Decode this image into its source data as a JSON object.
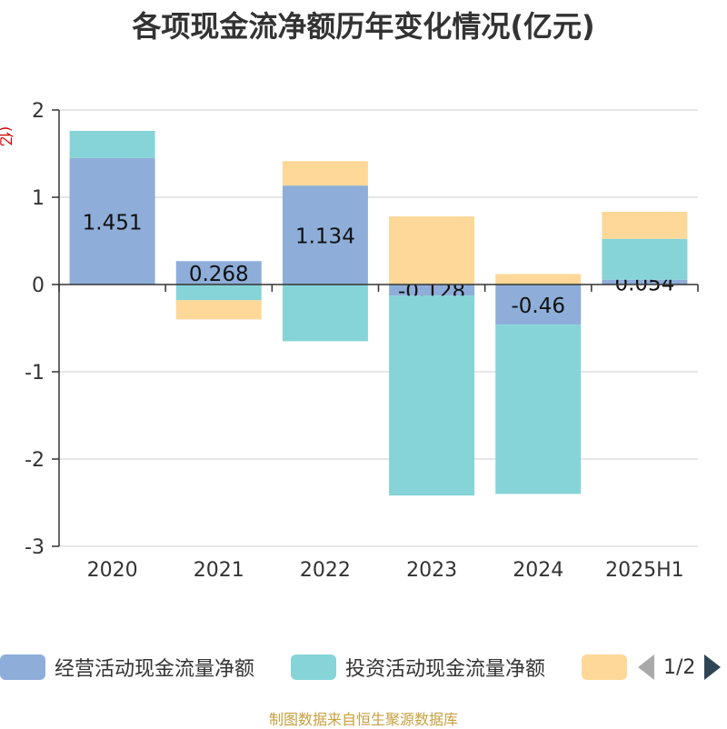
{
  "title": "各项现金流净额历年变化情况(亿元)",
  "unit_label": "(亿元)",
  "colors": {
    "operating": "#8eaed9",
    "investing": "#86d4d8",
    "financing": "#fdd898",
    "axis": "#333333",
    "grid": "#cccccc",
    "label": "#111111"
  },
  "legend": {
    "items": [
      {
        "label": "经营活动现金流量净额",
        "color": "#8eaed9"
      },
      {
        "label": "投资活动现金流量净额",
        "color": "#86d4d8"
      },
      {
        "label": "",
        "color": "#fdd898"
      }
    ],
    "page": "1/2"
  },
  "source": "制图数据来自恒生聚源数据库",
  "chart_data": {
    "type": "bar",
    "stacked": true,
    "categories": [
      "2020",
      "2021",
      "2022",
      "2023",
      "2024",
      "2025H1"
    ],
    "ylim": [
      -3,
      2
    ],
    "yticks": [
      2,
      1,
      0,
      -1,
      -2,
      -3
    ],
    "grid": true,
    "legend_position": "bottom",
    "series": [
      {
        "name": "经营活动现金流量净额",
        "values": [
          1.451,
          0.268,
          1.134,
          -0.128,
          -0.46,
          0.054
        ],
        "labels": [
          "1.451",
          "0.268",
          "1.134",
          "-0.128",
          "-0.46",
          "0.054"
        ]
      },
      {
        "name": "投资活动现金流量净额",
        "values": [
          0.31,
          -0.18,
          -0.65,
          -2.29,
          -1.94,
          0.47
        ]
      },
      {
        "values": [
          0,
          -0.22,
          0.28,
          0.78,
          0.12,
          0.31
        ]
      }
    ]
  }
}
